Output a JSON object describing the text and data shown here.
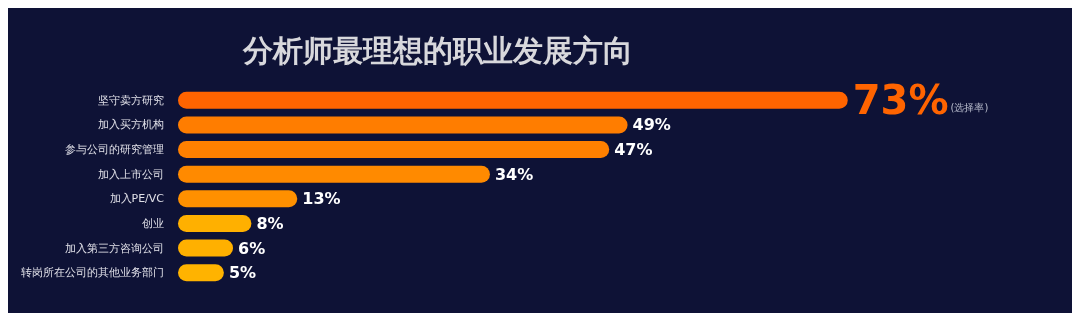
{
  "chart_data": {
    "type": "bar",
    "orientation": "horizontal",
    "title": "分析师最理想的职业发展方向",
    "categories": [
      "坚守卖方研究",
      "加入买方机构",
      "参与公司的研究管理",
      "加入上市公司",
      "加入PE/VC",
      "创业",
      "加入第三方咨询公司",
      "转岗所在公司的其他业务部门"
    ],
    "values": [
      73,
      49,
      47,
      34,
      13,
      8,
      6,
      5
    ],
    "value_labels": [
      "73%",
      "49%",
      "47%",
      "34%",
      "13%",
      "8%",
      "6%",
      "5%"
    ],
    "colors": [
      "#ff6400",
      "#ff7d00",
      "#ff8000",
      "#ff8a00",
      "#ff9000",
      "#ffb000",
      "#ffb000",
      "#ffb300"
    ],
    "annotations": [
      "(选择率)"
    ]
  }
}
